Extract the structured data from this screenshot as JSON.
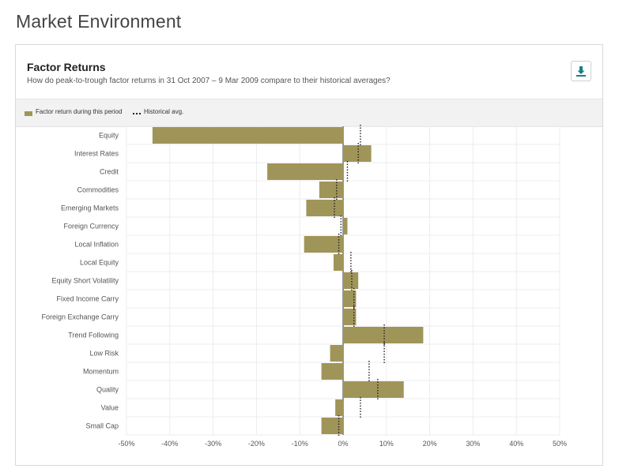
{
  "page": {
    "title": "Market Environment"
  },
  "card": {
    "title": "Factor Returns",
    "subtitle": "How do peak-to-trough factor returns in 31 Oct 2007 – 9 Mar 2009 compare to their historical averages?",
    "download_icon": "download-icon"
  },
  "legend": {
    "bar_label": "Factor return during this period",
    "avg_label": "Historical avg."
  },
  "colors": {
    "bar": "#a09559",
    "avg_line": "#222222",
    "download_accent": "#1a7f86"
  },
  "chart_data": {
    "type": "bar",
    "orientation": "horizontal",
    "categories": [
      "Equity",
      "Interest Rates",
      "Credit",
      "Commodities",
      "Emerging Markets",
      "Foreign Currency",
      "Local Inflation",
      "Local Equity",
      "Equity Short Volatility",
      "Fixed Income Carry",
      "Foreign Exchange Carry",
      "Trend Following",
      "Low Risk",
      "Momentum",
      "Quality",
      "Value",
      "Small Cap"
    ],
    "series": [
      {
        "name": "Factor return during this period",
        "values": [
          -44,
          6.5,
          -17.5,
          -5.5,
          -8.5,
          1,
          -9,
          -2.2,
          3.5,
          3,
          3,
          18.5,
          -3,
          -5,
          14,
          -1.8,
          -5
        ]
      },
      {
        "name": "Historical avg.",
        "values": [
          4,
          3.5,
          1,
          -1.5,
          -2,
          -0.5,
          -1,
          1.8,
          2,
          2.5,
          2.5,
          9.5,
          9.5,
          6,
          8,
          4,
          -1
        ]
      }
    ],
    "xlim": [
      -50,
      50
    ],
    "xticks": [
      -50,
      -40,
      -30,
      -20,
      -10,
      0,
      10,
      20,
      30,
      40,
      50
    ],
    "xtick_labels": [
      "-50%",
      "-40%",
      "-30%",
      "-20%",
      "-10%",
      "0%",
      "10%",
      "20%",
      "30%",
      "40%",
      "50%"
    ],
    "grid": true,
    "legend": "top-left"
  }
}
